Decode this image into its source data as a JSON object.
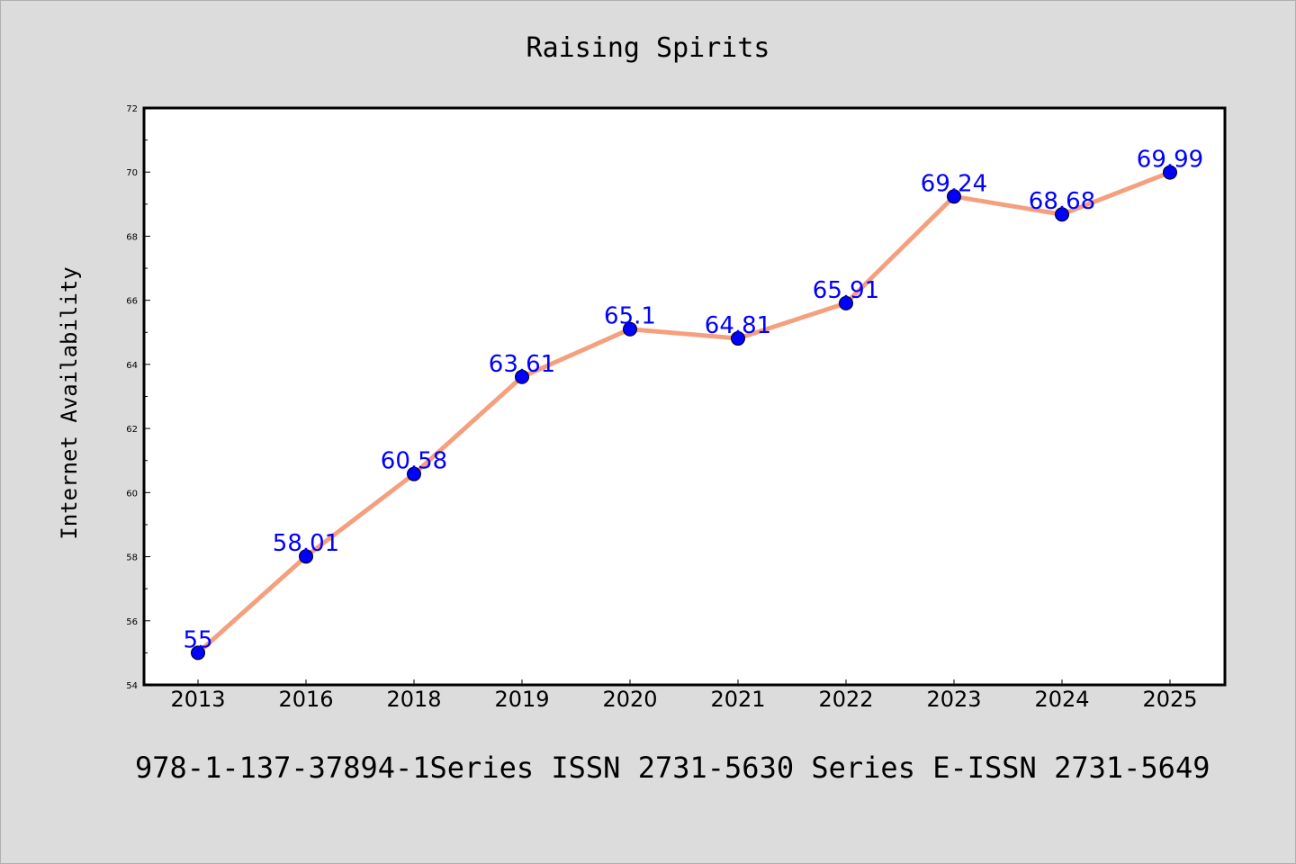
{
  "chart_data": {
    "type": "line",
    "title": "Raising Spirits",
    "xlabel": "",
    "ylabel": "Internet Availability",
    "categories": [
      "2013",
      "2016",
      "2018",
      "2019",
      "2020",
      "2021",
      "2022",
      "2023",
      "2024",
      "2025"
    ],
    "series": [
      {
        "values": [
          55,
          58.01,
          60.58,
          63.61,
          65.1,
          64.81,
          65.91,
          69.24,
          68.68,
          69.99
        ],
        "labels": [
          "55",
          "58.01",
          "60.58",
          "63.61",
          "65.1",
          "64.81",
          "65.91",
          "69.24",
          "68.68",
          "69.99"
        ]
      }
    ],
    "ylim": [
      54,
      72
    ],
    "yticks": [
      "54",
      "56",
      "58",
      "60",
      "62",
      "64",
      "66",
      "68",
      "70",
      "72"
    ],
    "grid": false,
    "line_color": "#f4a07f",
    "marker_color": "#0000ff",
    "label_color": "#0000ff"
  },
  "footer": {
    "text": "978-1-137-37894-1Series ISSN 2731-5630 Series E-ISSN 2731-5649"
  },
  "colors": {
    "background": "#dcdcdc",
    "plot_background": "#ffffff"
  }
}
